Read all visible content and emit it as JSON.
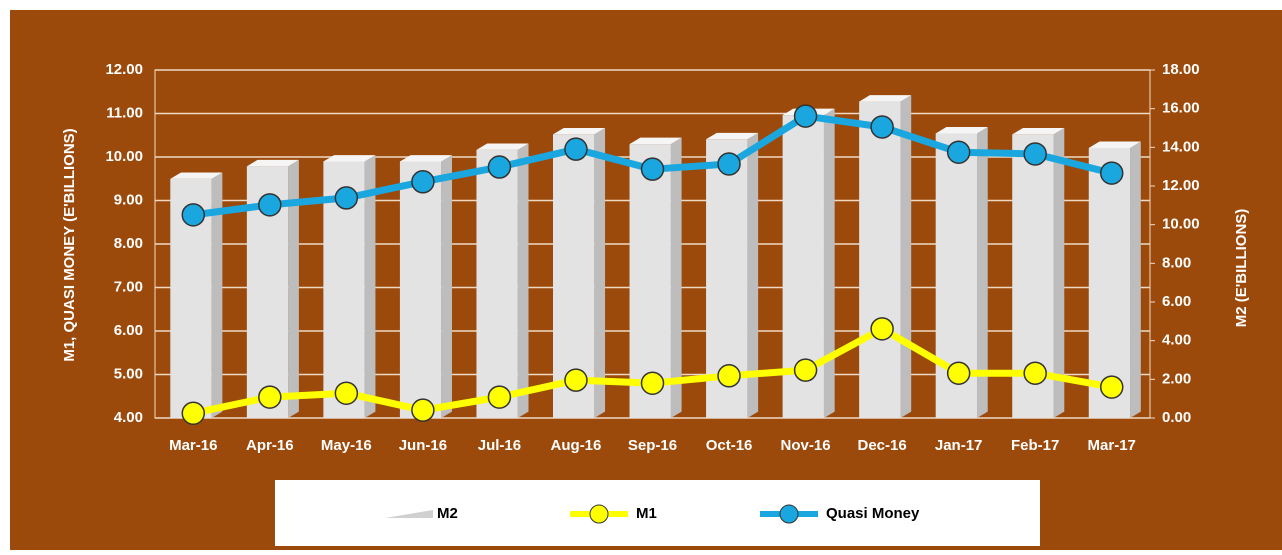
{
  "chart_data": {
    "type": "bar-line",
    "categories": [
      "Mar-16",
      "Apr-16",
      "May-16",
      "Jun-16",
      "Jul-16",
      "Aug-16",
      "Sep-16",
      "Oct-16",
      "Nov-16",
      "Dec-16",
      "Jan-17",
      "Feb-17",
      "Mar-17"
    ],
    "y_label": "M1, QUASI MONEY (E'BILLIONS)",
    "y2_label": "M2 (E'BILLIONS)",
    "ylim": [
      4,
      12
    ],
    "yticks": [
      {
        "value": 4,
        "label": "4.00"
      },
      {
        "value": 5,
        "label": "5.00"
      },
      {
        "value": 6,
        "label": "6.00"
      },
      {
        "value": 7,
        "label": "7.00"
      },
      {
        "value": 8,
        "label": "8.00"
      },
      {
        "value": 9,
        "label": "9.00"
      },
      {
        "value": 10,
        "label": "10.00"
      },
      {
        "value": 11,
        "label": "11.00"
      },
      {
        "value": 12,
        "label": "12.00"
      }
    ],
    "y2lim": [
      0,
      18
    ],
    "y2ticks": [
      {
        "value": 0,
        "label": "0.00"
      },
      {
        "value": 2,
        "label": "2.00"
      },
      {
        "value": 4,
        "label": "4.00"
      },
      {
        "value": 6,
        "label": "6.00"
      },
      {
        "value": 8,
        "label": "8.00"
      },
      {
        "value": 10,
        "label": "10.00"
      },
      {
        "value": 12,
        "label": "12.00"
      },
      {
        "value": 14,
        "label": "14.00"
      },
      {
        "value": 16,
        "label": "16.00"
      },
      {
        "value": 18,
        "label": "18.00"
      }
    ],
    "grid": true,
    "series": [
      {
        "name": "M2",
        "kind": "bar",
        "axis": "y2",
        "color": "#e3e3e3",
        "values": [
          12.7,
          13.35,
          13.6,
          13.6,
          14.2,
          15.0,
          14.5,
          14.75,
          16.0,
          16.7,
          15.05,
          15.0,
          14.3
        ]
      },
      {
        "name": "M1",
        "kind": "line",
        "color": "#ffff00",
        "values": [
          4.11,
          4.48,
          4.57,
          4.18,
          4.48,
          4.87,
          4.8,
          4.97,
          5.1,
          6.05,
          5.03,
          5.03,
          4.71
        ]
      },
      {
        "name": "Quasi Money",
        "kind": "line",
        "color": "#1aa7e0",
        "values": [
          8.67,
          8.9,
          9.06,
          9.43,
          9.77,
          10.18,
          9.72,
          9.84,
          10.94,
          10.69,
          10.11,
          10.07,
          9.63
        ]
      }
    ]
  }
}
